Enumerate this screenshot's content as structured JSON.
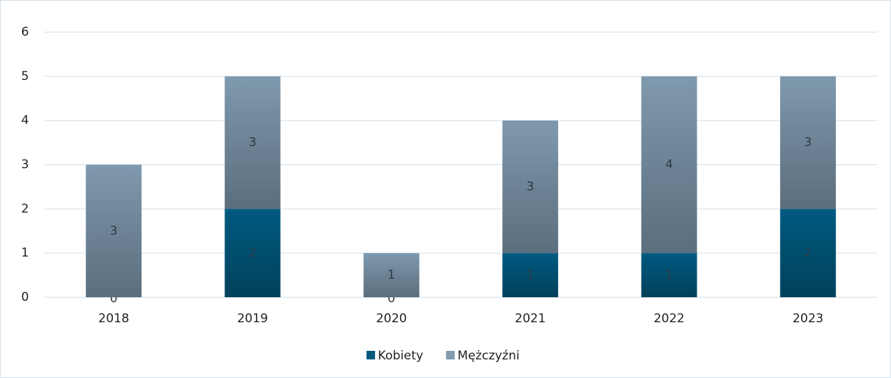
{
  "chart_data": {
    "type": "stacked_bar",
    "categories": [
      "2018",
      "2019",
      "2020",
      "2021",
      "2022",
      "2023"
    ],
    "series": [
      {
        "name": "Kobiety",
        "color": "#005a80",
        "values": [
          0,
          2,
          0,
          1,
          1,
          2
        ]
      },
      {
        "name": "Mężczyźni",
        "color": "#7f99ae",
        "values": [
          3,
          3,
          1,
          3,
          4,
          3
        ]
      }
    ],
    "ylim": [
      0,
      6
    ],
    "yticks": [
      0,
      1,
      2,
      3,
      4,
      5,
      6
    ],
    "grid": true,
    "legend": "bottom"
  }
}
